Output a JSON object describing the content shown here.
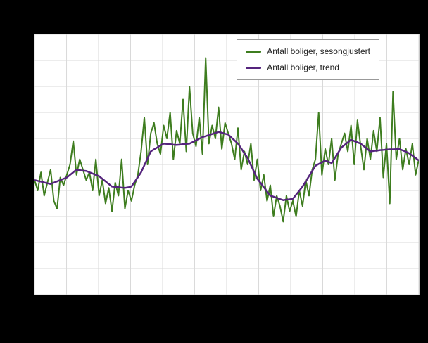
{
  "colors": {
    "page_background": "#000000",
    "plot_background": "#ffffff",
    "grid": "#d9d9d9",
    "plot_border": "#c8c8c8",
    "legend_border": "#999999",
    "legend_text": "#222222",
    "series_seasonal": "#3e7d1f",
    "series_trend": "#55247d"
  },
  "chart_data": {
    "type": "line",
    "title": "",
    "xlabel": "",
    "ylabel": "",
    "ylim": [
      0,
      100
    ],
    "grid": {
      "on": true,
      "x_divisions": 12,
      "y_divisions": 10
    },
    "legend_position": "top-right",
    "series": [
      {
        "id": "sesongjustert",
        "name": "Antall boliger, sesongjustert",
        "color": "#3e7d1f",
        "width": 2,
        "values": [
          44,
          40,
          47,
          38,
          43,
          48,
          36,
          33,
          45,
          42,
          46,
          50,
          59,
          46,
          52,
          48,
          44,
          47,
          40,
          52,
          38,
          44,
          35,
          41,
          32,
          43,
          38,
          52,
          33,
          40,
          36,
          42,
          46,
          55,
          68,
          50,
          62,
          66,
          58,
          54,
          65,
          60,
          70,
          52,
          63,
          58,
          75,
          55,
          80,
          62,
          57,
          68,
          54,
          91,
          58,
          65,
          60,
          72,
          56,
          66,
          62,
          58,
          52,
          64,
          48,
          55,
          50,
          58,
          44,
          52,
          40,
          46,
          36,
          42,
          30,
          38,
          34,
          28,
          38,
          32,
          36,
          30,
          40,
          34,
          44,
          38,
          48,
          52,
          70,
          46,
          56,
          50,
          60,
          44,
          54,
          58,
          62,
          55,
          65,
          50,
          67,
          57,
          48,
          60,
          52,
          63,
          55,
          68,
          45,
          58,
          35,
          78,
          52,
          60,
          48,
          56,
          50,
          58,
          46,
          52
        ]
      },
      {
        "id": "trend",
        "name": "Antall boliger, trend",
        "color": "#55247d",
        "width": 2.5,
        "values": [
          44,
          43.7,
          43.4,
          43.1,
          42.8,
          42.5,
          43,
          43.5,
          44,
          44.5,
          45,
          46,
          47,
          48,
          47.8,
          47.6,
          47.5,
          47,
          46.5,
          46,
          45.5,
          44.5,
          43.5,
          42.5,
          41.5,
          41.4,
          41.3,
          41.1,
          41,
          41.2,
          41.5,
          43.3,
          45.1,
          47,
          49.7,
          52.3,
          55,
          55.8,
          56.5,
          57.3,
          58,
          57.9,
          57.8,
          57.6,
          57.5,
          57.6,
          57.8,
          57.9,
          58,
          58.6,
          59.3,
          59.9,
          60.5,
          60.9,
          61.3,
          61.7,
          62.1,
          62.5,
          62.2,
          61.8,
          61.5,
          60.3,
          59.2,
          58,
          56.2,
          54.3,
          52.5,
          49.8,
          47.2,
          44.5,
          42.9,
          41.3,
          39.6,
          38,
          37.6,
          37.2,
          36.7,
          36.3,
          36.5,
          36.6,
          36.8,
          38.4,
          39.9,
          41.5,
          43.5,
          45.5,
          47.5,
          49.5,
          50.2,
          50.8,
          51.5,
          51,
          50.5,
          52.5,
          54.5,
          56.5,
          57.5,
          58.5,
          59.5,
          59,
          58.5,
          58,
          57,
          56,
          55,
          55.2,
          55.3,
          55.5,
          55.6,
          55.7,
          55.8,
          55.8,
          55.9,
          55.9,
          55.4,
          54.9,
          54.3,
          53.4,
          52.5,
          51.5
        ]
      }
    ]
  }
}
